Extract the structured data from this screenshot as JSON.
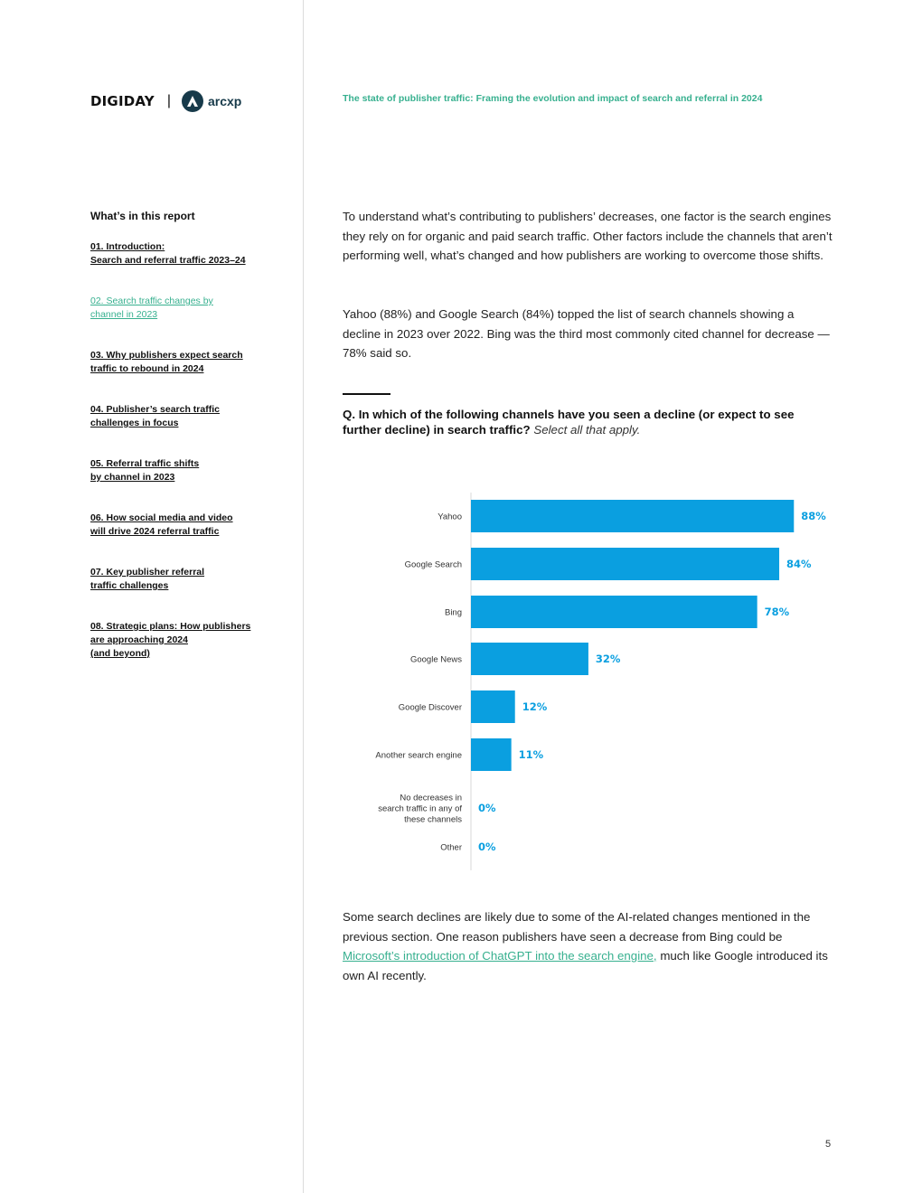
{
  "header": {
    "brand": "DIGIDAY",
    "separator": "|",
    "partner": "arcxp",
    "report_title": "The state of publisher traffic: Framing the evolution and impact of search and referral in 2024"
  },
  "sidebar": {
    "heading": "What’s in this report",
    "items": [
      {
        "lines": [
          "01. Introduction:",
          "Search and referral traffic 2023–24"
        ],
        "active": false
      },
      {
        "lines": [
          "02. Search traffic changes by",
          "channel in 2023"
        ],
        "active": true
      },
      {
        "lines": [
          "03. Why publishers expect search",
          "traffic to rebound in 2024"
        ],
        "active": false
      },
      {
        "lines": [
          "04. Publisher’s search traffic",
          "challenges in focus"
        ],
        "active": false
      },
      {
        "lines": [
          "05. Referral traffic shifts",
          "by channel in 2023"
        ],
        "active": false
      },
      {
        "lines": [
          "06. How social media and video",
          "will drive 2024 referral traffic"
        ],
        "active": false
      },
      {
        "lines": [
          "07. Key publisher referral",
          "traffic challenges"
        ],
        "active": false
      },
      {
        "lines": [
          "08. Strategic plans: How publishers",
          "are approaching 2024",
          "(and beyond)"
        ],
        "active": false
      }
    ]
  },
  "body": {
    "para1": "To understand what’s contributing to publishers’ decreases, one factor is the search engines they rely on for organic and paid search traffic. Other factors include the channels that aren’t performing well, what’s changed and how publishers are working to overcome those shifts.",
    "para2": "Yahoo (88%) and Google Search (84%) topped the list of search channels showing a decline in 2023 over 2022. Bing was the third most commonly cited channel for decrease — 78% said so.",
    "question": "Q. In which of the following channels have you seen a decline (or expect to see further decline) in search traffic?",
    "question_sub": "Select all that apply.",
    "para3_before": "Some search declines are likely due to some of the AI-related changes mentioned in the previous section. One reason publishers have seen a decrease from Bing could be ",
    "para3_link": "Microsoft’s introduction of ChatGPT into the search engine,",
    "para3_after": " much like Google introduced its own AI recently."
  },
  "chart_data": {
    "type": "bar",
    "orientation": "horizontal",
    "categories": [
      "Yahoo",
      "Google Search",
      "Bing",
      "Google News",
      "Google Discover",
      "Another search engine",
      "No decreases in search traffic in any of these channels",
      "Other"
    ],
    "category_lines": [
      [
        "Yahoo"
      ],
      [
        "Google Search"
      ],
      [
        "Bing"
      ],
      [
        "Google News"
      ],
      [
        "Google Discover"
      ],
      [
        "Another search engine"
      ],
      [
        "No decreases in",
        "search traffic in any of",
        "these channels"
      ],
      [
        "Other"
      ]
    ],
    "values": [
      88,
      84,
      78,
      32,
      12,
      11,
      0,
      0
    ],
    "value_labels": [
      "88%",
      "84%",
      "78%",
      "32%",
      "12%",
      "11%",
      "0%",
      "0%"
    ],
    "unit": "%",
    "xlim": [
      0,
      100
    ],
    "bar_color": "#0a9fe0",
    "label_color": "#0a9fe0",
    "grid": false
  },
  "footer": {
    "page_number": "5"
  },
  "colors": {
    "accent": "#37b08f",
    "bar": "#0a9fe0"
  }
}
